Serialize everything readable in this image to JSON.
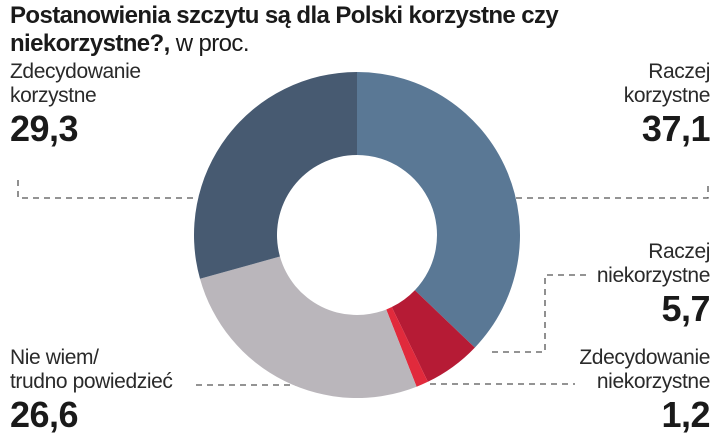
{
  "chart_data": {
    "type": "donut",
    "title": "Postanowienia szczytu są dla Polski korzystne czy niekorzystne?,",
    "subtitle": "w proc.",
    "categories": [
      "Raczej\nkorzystne",
      "Raczej\nniekorzystne",
      "Zdecydowanie\nniekorzystne",
      "Nie wiem/\ntrudno powiedzieć",
      "Zdecydowanie\nkorzystne"
    ],
    "values": [
      37.1,
      5.7,
      1.2,
      26.6,
      29.3
    ],
    "value_labels": [
      "37,1",
      "5,7",
      "1,2",
      "26,6",
      "29,3"
    ],
    "colors": [
      "#5a7895",
      "#b61b35",
      "#e12a3c",
      "#bab6bb",
      "#475a71"
    ]
  }
}
